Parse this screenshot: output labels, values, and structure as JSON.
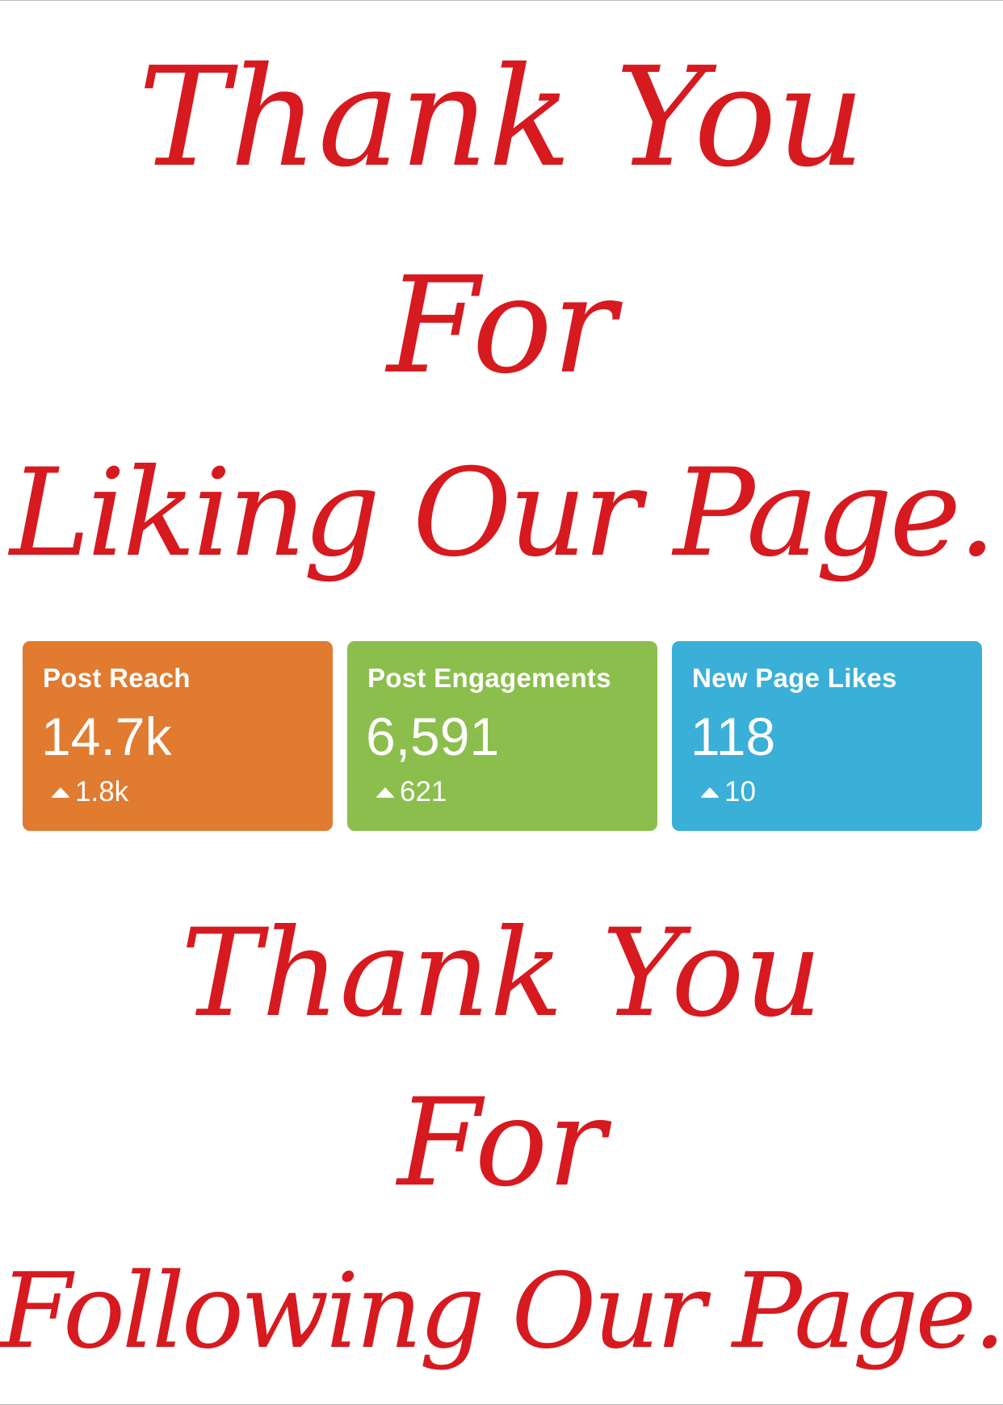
{
  "top_message": {
    "line1": "Thank You",
    "line2": "For",
    "line3": "Liking Our Page."
  },
  "stats": [
    {
      "label": "Post Reach",
      "value": "14.7k",
      "change": "1.8k",
      "change_icon": "triangle-up-icon",
      "color": "#e07b30"
    },
    {
      "label": "Post Engagements",
      "value": "6,591",
      "change": "621",
      "change_icon": "triangle-up-icon",
      "color": "#8bbe4c"
    },
    {
      "label": "New Page Likes",
      "value": "118",
      "change": "10",
      "change_icon": "triangle-up-icon",
      "color": "#3aafd8"
    }
  ],
  "bottom_message": {
    "line1": "Thank You",
    "line2": "For",
    "line3": "Following Our Page."
  },
  "text_color": "#d61a1f"
}
